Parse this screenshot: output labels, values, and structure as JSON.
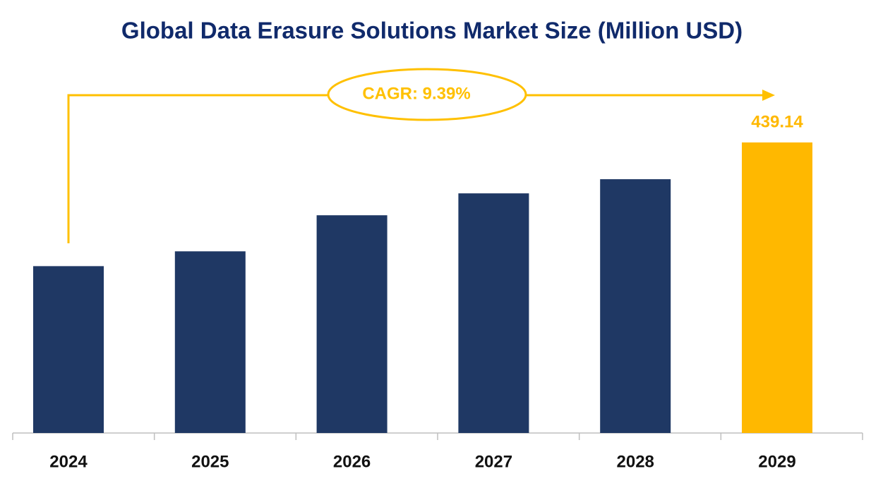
{
  "chart_data": {
    "type": "bar",
    "title": "Global Data Erasure Solutions Market Size (Million USD)",
    "annotation": "CAGR: 9.39%",
    "categories": [
      "2024",
      "2025",
      "2026",
      "2027",
      "2028",
      "2029"
    ],
    "values": [
      252.2,
      274.6,
      329.1,
      362.2,
      383.6,
      439.14
    ],
    "value_labels": [
      null,
      null,
      null,
      null,
      null,
      "439.14"
    ],
    "colors": [
      "#1f3864",
      "#1f3864",
      "#1f3864",
      "#1f3864",
      "#1f3864",
      "#ffb800"
    ],
    "annotation_color": "#ffc000",
    "title_color": "#102a6b"
  }
}
